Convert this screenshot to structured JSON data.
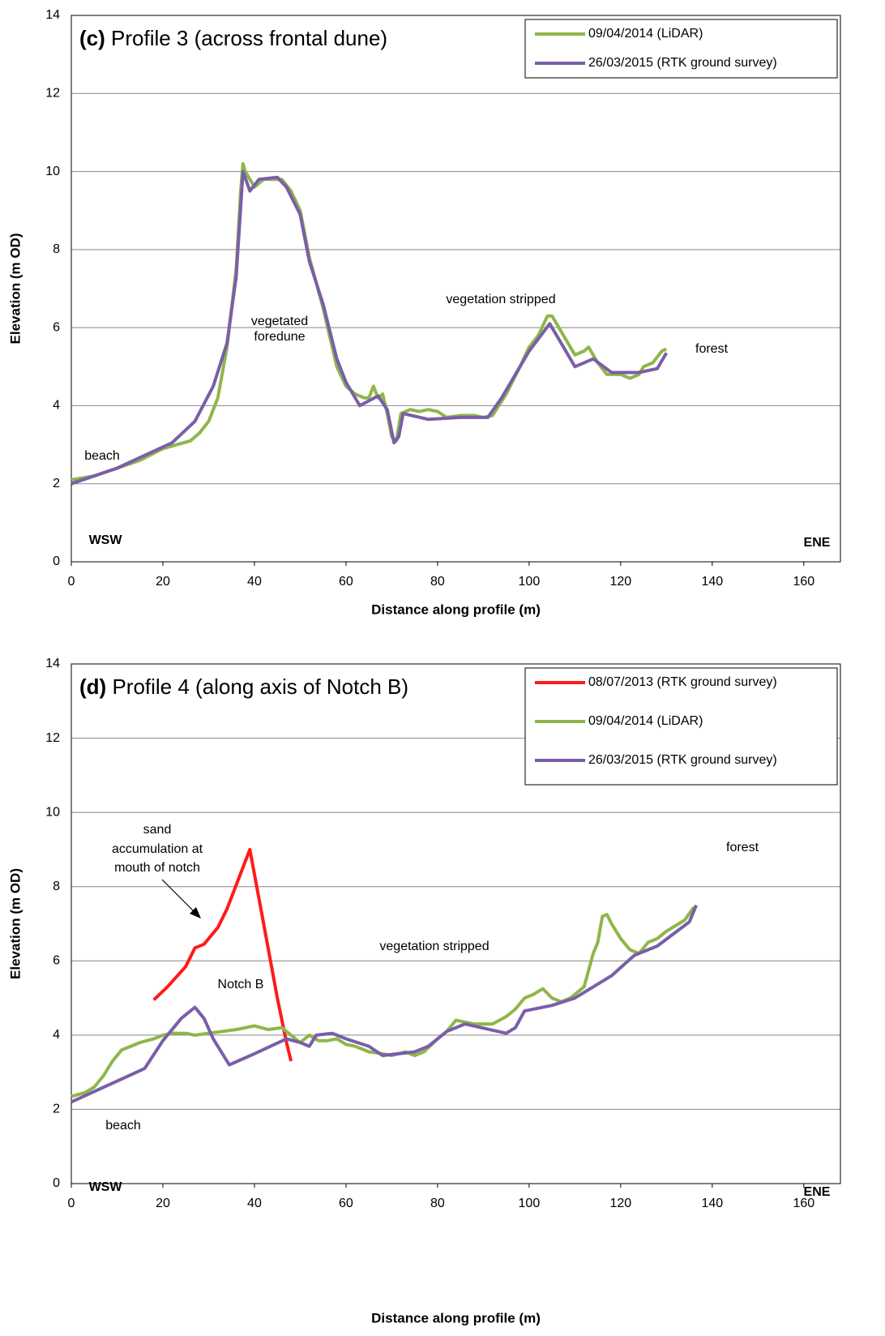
{
  "chart_data": [
    {
      "type": "line",
      "panel": "(c)",
      "title": "Profile 3 (across frontal dune)",
      "x_label": "Distance along profile (m)",
      "y_label": "Elevation (m OD)",
      "xlim": [
        0,
        168
      ],
      "xticks": [
        0,
        20,
        40,
        60,
        80,
        100,
        120,
        140,
        160
      ],
      "ylim": [
        0,
        14
      ],
      "yticks": [
        0,
        2,
        4,
        6,
        8,
        10,
        12,
        14
      ],
      "grid": true,
      "legend": "upper right",
      "annotations": [
        "beach",
        "vegetated",
        "foredune",
        "vegetation stripped",
        "forest",
        "WSW",
        "ENE"
      ],
      "series": [
        {
          "name": "09/04/2014 (LiDAR)",
          "color": "#8fb64a",
          "x": [
            0,
            5,
            10,
            15,
            20,
            23,
            26,
            28,
            30,
            32,
            34,
            36,
            37,
            37.5,
            38,
            40,
            42,
            44,
            46,
            48,
            50,
            52,
            55,
            58,
            60,
            62,
            64,
            65,
            66,
            67,
            68,
            69,
            70,
            71,
            72,
            74,
            76,
            78,
            80,
            82,
            85,
            88,
            90,
            92,
            95,
            98,
            100,
            102,
            104,
            105,
            106,
            108,
            110,
            112,
            113,
            115,
            117,
            120,
            122,
            124,
            125,
            127,
            129,
            130
          ],
          "values": [
            2.1,
            2.2,
            2.4,
            2.6,
            2.9,
            3.0,
            3.1,
            3.3,
            3.6,
            4.2,
            5.5,
            7.5,
            9.5,
            10.2,
            10.0,
            9.6,
            9.8,
            9.8,
            9.8,
            9.5,
            9.0,
            7.8,
            6.5,
            5.0,
            4.5,
            4.3,
            4.2,
            4.2,
            4.5,
            4.2,
            4.3,
            3.8,
            3.2,
            3.1,
            3.8,
            3.9,
            3.85,
            3.9,
            3.85,
            3.7,
            3.75,
            3.75,
            3.7,
            3.75,
            4.3,
            5.0,
            5.5,
            5.8,
            6.3,
            6.3,
            6.1,
            5.7,
            5.3,
            5.4,
            5.5,
            5.1,
            4.8,
            4.8,
            4.7,
            4.8,
            5.0,
            5.1,
            5.4,
            5.45
          ]
        },
        {
          "name": "26/03/2015 (RTK ground survey)",
          "color": "#7a5ea8",
          "x": [
            0,
            10,
            22,
            27,
            31,
            34,
            36,
            37.5,
            39,
            41,
            45,
            47,
            50,
            52,
            55,
            58,
            60,
            63,
            67,
            69,
            70.5,
            71.5,
            72.5,
            78,
            85,
            91,
            94,
            100,
            104.5,
            110,
            114,
            118,
            124,
            128,
            130
          ],
          "values": [
            2.0,
            2.4,
            3.05,
            3.6,
            4.5,
            5.6,
            7.3,
            10.0,
            9.5,
            9.8,
            9.85,
            9.6,
            8.9,
            7.7,
            6.6,
            5.2,
            4.6,
            4.0,
            4.25,
            3.9,
            3.05,
            3.2,
            3.8,
            3.65,
            3.7,
            3.7,
            4.2,
            5.4,
            6.1,
            5.0,
            5.2,
            4.85,
            4.85,
            4.95,
            5.35
          ]
        }
      ]
    },
    {
      "type": "line",
      "panel": "(d)",
      "title": "Profile 4 (along axis of Notch B)",
      "x_label": "Distance along profile (m)",
      "y_label": "Elevation (m OD)",
      "xlim": [
        0,
        168
      ],
      "xticks": [
        0,
        20,
        40,
        60,
        80,
        100,
        120,
        140,
        160
      ],
      "ylim": [
        0,
        14
      ],
      "yticks": [
        0,
        2,
        4,
        6,
        8,
        10,
        12,
        14
      ],
      "grid": true,
      "legend": "upper right",
      "annotations": [
        "sand",
        "accumulation at",
        "mouth of notch",
        "Notch B",
        "vegetation stripped",
        "forest",
        "beach",
        "WSW",
        "ENE"
      ],
      "series": [
        {
          "name": "08/07/2013 (RTK ground survey)",
          "color": "#ff1a1a",
          "x": [
            18,
            21,
            25,
            27,
            29,
            32,
            34,
            39,
            42,
            45,
            47,
            48
          ],
          "values": [
            4.95,
            5.3,
            5.85,
            6.35,
            6.45,
            6.9,
            7.4,
            9.0,
            7.0,
            5.0,
            3.8,
            3.3
          ]
        },
        {
          "name": "09/04/2014 (LiDAR)",
          "color": "#8fb64a",
          "x": [
            0,
            3,
            5,
            7,
            9,
            11,
            13,
            15,
            18,
            20,
            22,
            25,
            27,
            30,
            33,
            36,
            40,
            43,
            46,
            48,
            50,
            52,
            54,
            56,
            58,
            60,
            62,
            65,
            68,
            70,
            73,
            75,
            77,
            80,
            82,
            84,
            86,
            88,
            90,
            92,
            95,
            97,
            99,
            101,
            103,
            105,
            107,
            109,
            110,
            112,
            114,
            115,
            116,
            117,
            118,
            120,
            122,
            124,
            126,
            128,
            130,
            132,
            134,
            136
          ],
          "values": [
            2.35,
            2.45,
            2.6,
            2.9,
            3.3,
            3.6,
            3.7,
            3.8,
            3.9,
            4.0,
            4.05,
            4.05,
            4.0,
            4.05,
            4.1,
            4.15,
            4.25,
            4.15,
            4.2,
            4.0,
            3.8,
            4.0,
            3.85,
            3.85,
            3.9,
            3.75,
            3.7,
            3.55,
            3.5,
            3.45,
            3.55,
            3.45,
            3.55,
            3.9,
            4.1,
            4.4,
            4.35,
            4.3,
            4.3,
            4.3,
            4.5,
            4.7,
            5.0,
            5.1,
            5.25,
            5.0,
            4.9,
            5.0,
            5.1,
            5.3,
            6.2,
            6.5,
            7.2,
            7.25,
            7.0,
            6.6,
            6.3,
            6.2,
            6.5,
            6.6,
            6.8,
            6.95,
            7.1,
            7.45
          ]
        },
        {
          "name": "26/03/2015 (RTK ground survey)",
          "color": "#7a5ea8",
          "x": [
            0,
            16,
            20,
            24,
            27,
            29,
            31,
            34.5,
            40,
            47,
            50,
            52,
            53.5,
            57,
            60,
            65,
            68,
            75,
            78,
            82,
            86,
            95,
            97,
            99,
            105,
            110,
            118,
            123,
            128,
            135,
            136.5
          ],
          "values": [
            2.2,
            3.1,
            3.85,
            4.45,
            4.75,
            4.45,
            3.9,
            3.2,
            3.5,
            3.9,
            3.8,
            3.7,
            4.0,
            4.05,
            3.9,
            3.7,
            3.45,
            3.55,
            3.7,
            4.1,
            4.3,
            4.05,
            4.2,
            4.65,
            4.8,
            5.0,
            5.6,
            6.15,
            6.4,
            7.05,
            7.5
          ]
        }
      ]
    }
  ]
}
